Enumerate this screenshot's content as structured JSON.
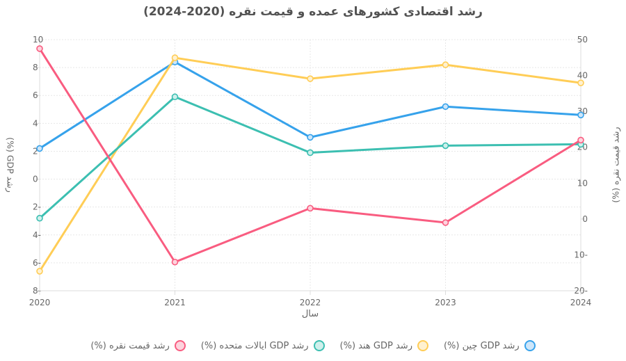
{
  "title": "رشد اقتصادی کشورهای عمده و قیمت نقره (2020-2024)",
  "chart_data": {
    "type": "line",
    "x": [
      2020,
      2021,
      2022,
      2023,
      2024
    ],
    "xlabel": "سال",
    "ylabel_left": "رشد GDP (%)",
    "ylabel_right": "رشد قیمت نقره (%)",
    "ylim_left": [
      -8,
      10
    ],
    "yticks_left": [
      10,
      8,
      6,
      4,
      2,
      0,
      -2,
      -4,
      -6,
      -8
    ],
    "ylim_right": [
      -20,
      50
    ],
    "yticks_right": [
      50,
      40,
      30,
      20,
      10,
      0,
      -10,
      -20
    ],
    "grid": true,
    "legend_position": "bottom",
    "grid_color": "#e7e7e7",
    "axis_color": "#dcdcdc",
    "tick_label_color": "#666666",
    "series": [
      {
        "id": "china-gdp",
        "name": "رشد GDP چین (%)",
        "axis": "left",
        "color": "#36A2EB",
        "tint": "#CDE6FA",
        "values": [
          2.2,
          8.4,
          3.0,
          5.2,
          4.6
        ]
      },
      {
        "id": "india-gdp",
        "name": "رشد GDP هند (%)",
        "axis": "left",
        "color": "#FFCD56",
        "tint": "#FFF1D0",
        "values": [
          -6.6,
          8.7,
          7.2,
          8.2,
          6.9
        ]
      },
      {
        "id": "usa-gdp",
        "name": "رشد GDP ایالات متحده (%)",
        "axis": "left",
        "color": "#3CBFB1",
        "tint": "#CFF0EC",
        "values": [
          -2.8,
          5.9,
          1.9,
          2.4,
          2.5
        ]
      },
      {
        "id": "silver-price",
        "name": "رشد قیمت نقره (%)",
        "axis": "right",
        "color": "#F95C80",
        "tint": "#FDD3DD",
        "values": [
          47.5,
          -12,
          3,
          -1,
          22
        ]
      }
    ]
  }
}
